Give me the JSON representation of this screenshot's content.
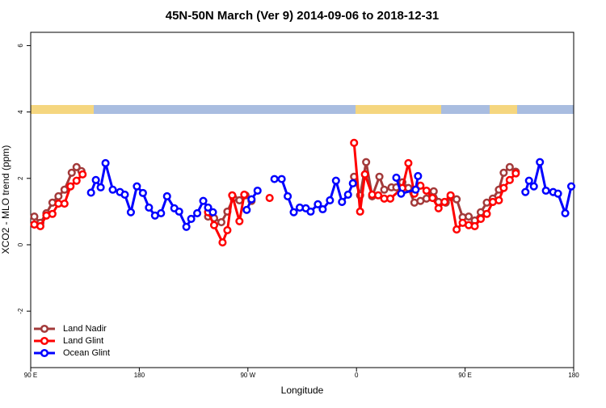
{
  "chart_data": {
    "type": "line",
    "title": "45N-50N March (Ver 9)   2014-09-06 to 2018-12-31",
    "x_label": "Longitude",
    "y_label": "XCO2 - MLO trend (ppm)",
    "xlim": [
      90,
      540
    ],
    "ylim": [
      -3.7,
      6.4
    ],
    "xticks": [
      {
        "value": 90,
        "label": "90 E"
      },
      180,
      {
        "value": 270,
        "label": "90 W"
      },
      {
        "value": 360,
        "label": "0"
      },
      {
        "value": 450,
        "label": "90 E"
      },
      {
        "value": 540,
        "label": "180"
      }
    ],
    "yticks": [
      -2,
      0,
      2,
      4,
      6
    ],
    "legend": "bottomleft",
    "series": [
      {
        "name": "Land Nadir",
        "color": "#a33a3a",
        "x": [
          93,
          98,
          103,
          108,
          113,
          118,
          124,
          128,
          132,
          185,
          237,
          242,
          248,
          253,
          258,
          263,
          268,
          273,
          315,
          358,
          363,
          368,
          373,
          379,
          383,
          389,
          393,
          398,
          403,
          408,
          413,
          418,
          424,
          428,
          434,
          438,
          443,
          448,
          453,
          458,
          463,
          468,
          473,
          478,
          482,
          487,
          492
        ],
        "values": [
          0.85,
          0.66,
          0.95,
          1.27,
          1.46,
          1.66,
          2.17,
          2.34,
          2.22,
          null,
          0.85,
          0.8,
          0.68,
          1.0,
          1.41,
          1.34,
          1.49,
          1.32,
          null,
          2.05,
          1.49,
          2.49,
          1.46,
          2.05,
          1.66,
          1.73,
          1.73,
          1.88,
          1.71,
          1.27,
          1.32,
          1.39,
          1.61,
          1.29,
          1.27,
          1.44,
          1.37,
          0.83,
          0.85,
          0.73,
          0.98,
          1.27,
          1.39,
          1.66,
          2.17,
          2.34,
          2.2
        ]
      },
      {
        "name": "Land Glint",
        "color": "#ff0000",
        "x": [
          93,
          98,
          103,
          108,
          113,
          118,
          123,
          128,
          133,
          185,
          237,
          242,
          249,
          253,
          257,
          263,
          267,
          280,
          288,
          320,
          358,
          363,
          367,
          373,
          378,
          383,
          388,
          398,
          403,
          408,
          413,
          418,
          423,
          428,
          433,
          438,
          443,
          448,
          453,
          458,
          463,
          468,
          473,
          478,
          482,
          487,
          492
        ],
        "values": [
          0.61,
          0.56,
          0.88,
          0.93,
          1.24,
          1.24,
          1.76,
          1.93,
          2.12,
          null,
          0.98,
          0.59,
          0.07,
          0.44,
          1.49,
          0.71,
          1.51,
          null,
          1.41,
          null,
          3.07,
          1.0,
          2.12,
          1.51,
          1.49,
          1.39,
          1.39,
          1.71,
          2.46,
          1.54,
          1.78,
          1.63,
          1.41,
          1.1,
          1.29,
          1.49,
          0.46,
          0.66,
          0.59,
          0.56,
          0.78,
          0.93,
          1.29,
          1.34,
          1.71,
          1.95,
          2.15
        ]
      },
      {
        "name": "Ocean Glint",
        "color": "#0000ff",
        "x": [
          140,
          144,
          148,
          152,
          158,
          164,
          168,
          173,
          178,
          183,
          188,
          193,
          198,
          203,
          209,
          213,
          219,
          223,
          228,
          233,
          237,
          241,
          255,
          269,
          273,
          278,
          285,
          292,
          298,
          303,
          308,
          313,
          318,
          322,
          328,
          332,
          338,
          343,
          348,
          353,
          357,
          375,
          393,
          397,
          409,
          411,
          455,
          500,
          503,
          507,
          512,
          517,
          523,
          527,
          533,
          538
        ],
        "values": [
          1.57,
          1.95,
          1.73,
          2.46,
          1.66,
          1.59,
          1.51,
          0.98,
          1.76,
          1.56,
          1.12,
          0.88,
          0.95,
          1.46,
          1.1,
          1.0,
          0.54,
          0.78,
          0.95,
          1.32,
          1.12,
          0.98,
          null,
          1.05,
          1.37,
          1.63,
          null,
          1.98,
          1.98,
          1.46,
          0.98,
          1.12,
          1.1,
          1.0,
          1.22,
          1.07,
          1.34,
          1.93,
          1.29,
          1.51,
          1.85,
          null,
          2.02,
          1.54,
          1.66,
          2.07,
          null,
          1.59,
          1.93,
          1.76,
          2.49,
          1.63,
          1.59,
          1.54,
          0.95,
          1.76
        ]
      }
    ]
  }
}
